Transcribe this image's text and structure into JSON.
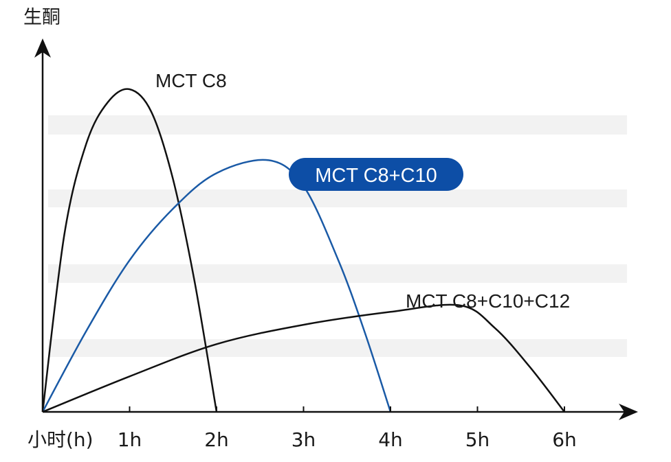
{
  "chart_data": {
    "type": "line",
    "ylabel": "生酮",
    "xlabel": "小时(h)",
    "x_ticks": [
      "1h",
      "2h",
      "3h",
      "4h",
      "5h",
      "6h"
    ],
    "xlim": [
      0,
      6.7
    ],
    "ylim": [
      0,
      1.1
    ],
    "grid": "horizontal bands",
    "series": [
      {
        "name": "MCT C8",
        "color": "#111111",
        "x": [
          0,
          0.25,
          0.5,
          0.75,
          1.0,
          1.25,
          1.5,
          1.75,
          2.0
        ],
        "y": [
          0,
          0.55,
          0.83,
          0.96,
          1.0,
          0.93,
          0.72,
          0.4,
          0
        ]
      },
      {
        "name": "MCT C8+C10",
        "color": "#1a5aa6",
        "x": [
          0,
          0.5,
          1.0,
          1.5,
          2.0,
          2.6,
          3.0,
          3.4,
          3.7,
          4.0
        ],
        "y": [
          0,
          0.25,
          0.47,
          0.63,
          0.74,
          0.78,
          0.7,
          0.47,
          0.25,
          0
        ]
      },
      {
        "name": "MCT C8+C10+C12",
        "color": "#111111",
        "x": [
          0,
          1.0,
          2.0,
          3.0,
          4.0,
          4.8,
          5.2,
          5.6,
          6.0
        ],
        "y": [
          0,
          0.11,
          0.21,
          0.27,
          0.31,
          0.33,
          0.26,
          0.14,
          0
        ]
      }
    ]
  },
  "legend": {
    "label_c8": "MCT C8",
    "label_c8c10": "MCT C8+C10",
    "label_c8c10c12": "MCT C8+C10+C12",
    "highlight_color": "#0d4ea6"
  }
}
